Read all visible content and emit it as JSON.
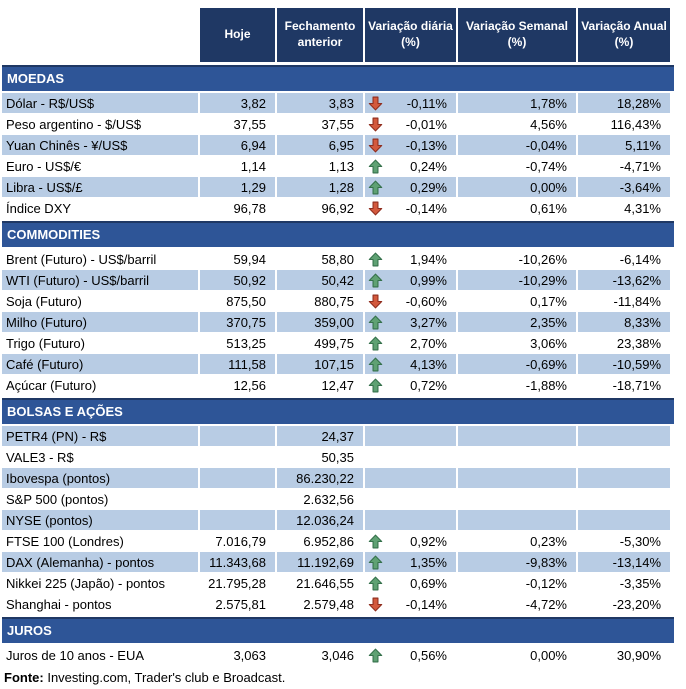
{
  "chart_data": {
    "type": "table",
    "title": "",
    "columns": [
      "Hoje",
      "Fechamento anterior",
      "Variação diária (%)",
      "Variação Semanal (%)",
      "Variação Anual (%)"
    ],
    "sections": [
      {
        "title": "MOEDAS",
        "rows": [
          {
            "label": "Dólar - R$/US$",
            "hoje": "3,82",
            "fechamento": "3,83",
            "arrow": "down",
            "diaria": "-0,11%",
            "semanal": "1,78%",
            "anual": "18,28%",
            "alt": true
          },
          {
            "label": "Peso argentino - $/US$",
            "hoje": "37,55",
            "fechamento": "37,55",
            "arrow": "down",
            "diaria": "-0,01%",
            "semanal": "4,56%",
            "anual": "116,43%",
            "alt": false
          },
          {
            "label": "Yuan Chinês - ¥/US$",
            "hoje": "6,94",
            "fechamento": "6,95",
            "arrow": "down",
            "diaria": "-0,13%",
            "semanal": "-0,04%",
            "anual": "5,11%",
            "alt": true
          },
          {
            "label": "Euro - US$/€",
            "hoje": "1,14",
            "fechamento": "1,13",
            "arrow": "up",
            "diaria": "0,24%",
            "semanal": "-0,74%",
            "anual": "-4,71%",
            "alt": false
          },
          {
            "label": "Libra - US$/£",
            "hoje": "1,29",
            "fechamento": "1,28",
            "arrow": "up",
            "diaria": "0,29%",
            "semanal": "0,00%",
            "anual": "-3,64%",
            "alt": true
          },
          {
            "label": "Índice DXY",
            "hoje": "96,78",
            "fechamento": "96,92",
            "arrow": "down",
            "diaria": "-0,14%",
            "semanal": "0,61%",
            "anual": "4,31%",
            "alt": false
          }
        ]
      },
      {
        "title": "COMMODITIES",
        "rows": [
          {
            "label": "Brent (Futuro) - US$/barril",
            "hoje": "59,94",
            "fechamento": "58,80",
            "arrow": "up",
            "diaria": "1,94%",
            "semanal": "-10,26%",
            "anual": "-6,14%",
            "alt": false
          },
          {
            "label": "WTI (Futuro) - US$/barril",
            "hoje": "50,92",
            "fechamento": "50,42",
            "arrow": "up",
            "diaria": "0,99%",
            "semanal": "-10,29%",
            "anual": "-13,62%",
            "alt": true
          },
          {
            "label": "Soja (Futuro)",
            "hoje": "875,50",
            "fechamento": "880,75",
            "arrow": "down",
            "diaria": "-0,60%",
            "semanal": "0,17%",
            "anual": "-11,84%",
            "alt": false
          },
          {
            "label": "Milho (Futuro)",
            "hoje": "370,75",
            "fechamento": "359,00",
            "arrow": "up",
            "diaria": "3,27%",
            "semanal": "2,35%",
            "anual": "8,33%",
            "alt": true
          },
          {
            "label": "Trigo (Futuro)",
            "hoje": "513,25",
            "fechamento": "499,75",
            "arrow": "up",
            "diaria": "2,70%",
            "semanal": "3,06%",
            "anual": "23,38%",
            "alt": false
          },
          {
            "label": "Café (Futuro)",
            "hoje": "111,58",
            "fechamento": "107,15",
            "arrow": "up",
            "diaria": "4,13%",
            "semanal": "-0,69%",
            "anual": "-10,59%",
            "alt": true
          },
          {
            "label": "Açúcar (Futuro)",
            "hoje": "12,56",
            "fechamento": "12,47",
            "arrow": "up",
            "diaria": "0,72%",
            "semanal": "-1,88%",
            "anual": "-18,71%",
            "alt": false
          }
        ]
      },
      {
        "title": "BOLSAS E AÇÕES",
        "rows": [
          {
            "label": "PETR4 (PN) - R$",
            "hoje": "",
            "fechamento": "24,37",
            "arrow": null,
            "diaria": "",
            "semanal": "",
            "anual": "",
            "alt": true
          },
          {
            "label": "VALE3 - R$",
            "hoje": "",
            "fechamento": "50,35",
            "arrow": null,
            "diaria": "",
            "semanal": "",
            "anual": "",
            "alt": false
          },
          {
            "label": "Ibovespa (pontos)",
            "hoje": "",
            "fechamento": "86.230,22",
            "arrow": null,
            "diaria": "",
            "semanal": "",
            "anual": "",
            "alt": true
          },
          {
            "label": "S&P 500 (pontos)",
            "hoje": "",
            "fechamento": "2.632,56",
            "arrow": null,
            "diaria": "",
            "semanal": "",
            "anual": "",
            "alt": false
          },
          {
            "label": "NYSE (pontos)",
            "hoje": "",
            "fechamento": "12.036,24",
            "arrow": null,
            "diaria": "",
            "semanal": "",
            "anual": "",
            "alt": true
          },
          {
            "label": "FTSE 100 (Londres)",
            "hoje": "7.016,79",
            "fechamento": "6.952,86",
            "arrow": "up",
            "diaria": "0,92%",
            "semanal": "0,23%",
            "anual": "-5,30%",
            "alt": false
          },
          {
            "label": "DAX (Alemanha) - pontos",
            "hoje": "11.343,68",
            "fechamento": "11.192,69",
            "arrow": "up",
            "diaria": "1,35%",
            "semanal": "-9,83%",
            "anual": "-13,14%",
            "alt": true
          },
          {
            "label": "Nikkei 225 (Japão) - pontos",
            "hoje": "21.795,28",
            "fechamento": "21.646,55",
            "arrow": "up",
            "diaria": "0,69%",
            "semanal": "-0,12%",
            "anual": "-3,35%",
            "alt": false
          },
          {
            "label": "Shanghai - pontos",
            "hoje": "2.575,81",
            "fechamento": "2.579,48",
            "arrow": "down",
            "diaria": "-0,14%",
            "semanal": "-4,72%",
            "anual": "-23,20%",
            "alt": false
          }
        ]
      },
      {
        "title": "JUROS",
        "rows": [
          {
            "label": "Juros de 10 anos - EUA",
            "hoje": "3,063",
            "fechamento": "3,046",
            "arrow": "up",
            "diaria": "0,56%",
            "semanal": "0,00%",
            "anual": "30,90%",
            "alt": false
          }
        ]
      }
    ]
  },
  "footer": {
    "label": "Fonte:",
    "text": " Investing.com, Trader's club e Broadcast."
  },
  "colors": {
    "header_bg": "#1F3864",
    "section_bg": "#2E5597",
    "row_alt_bg": "#B8CCE4",
    "up_arrow_fill": "#5FA173",
    "up_arrow_stroke": "#35714B",
    "down_arrow_fill": "#D3593D",
    "down_arrow_stroke": "#8F2D1E"
  },
  "icons": {
    "up": "up-arrow-icon",
    "down": "down-arrow-icon"
  }
}
